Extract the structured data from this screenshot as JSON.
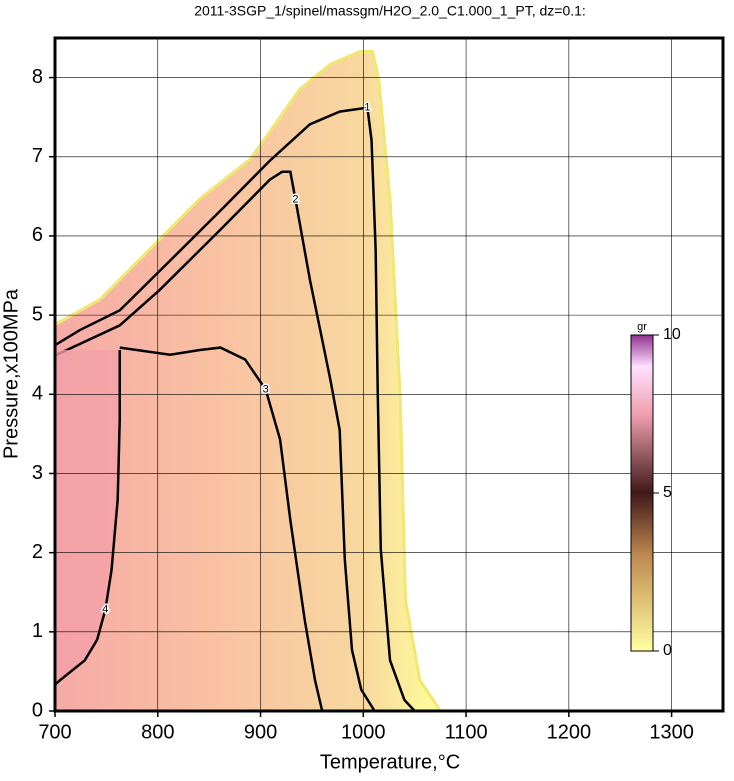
{
  "chart_data": {
    "type": "contour",
    "title": "2011-3SGP_1/spinel/massgm/H2O_2.0_C1.000_1_PT, dz=0.1:",
    "xlabel": "Temperature,°C",
    "ylabel": "Pressure,x100MPa",
    "xlim": [
      700,
      1350
    ],
    "ylim": [
      0,
      8.5
    ],
    "xticks": [
      700,
      800,
      900,
      1000,
      1100,
      1200,
      1300
    ],
    "yticks": [
      0,
      1,
      2,
      3,
      4,
      5,
      6,
      7,
      8
    ],
    "grid": true,
    "region": {
      "x": [
        700,
        744,
        763,
        802,
        841,
        890,
        938,
        968,
        997,
        1009,
        1015,
        1026,
        1036,
        1041,
        1055,
        1075,
        700
      ],
      "y": [
        4.88,
        5.2,
        5.45,
        5.96,
        6.47,
        6.97,
        7.85,
        8.17,
        8.33,
        8.33,
        7.98,
        6.46,
        3.93,
        1.4,
        0.39,
        0,
        0
      ]
    },
    "contours": [
      {
        "level": 1,
        "x": [
          700,
          724,
          763,
          802,
          861,
          909,
          948,
          977,
          1004,
          1008,
          1012,
          1014,
          1017,
          1026,
          1040,
          1050
        ],
        "y": [
          4.62,
          4.81,
          5.06,
          5.56,
          6.32,
          6.95,
          7.41,
          7.57,
          7.62,
          7.21,
          5.83,
          4.05,
          2.04,
          0.64,
          0.14,
          0
        ]
      },
      {
        "level": 2,
        "x": [
          700,
          763,
          802,
          861,
          909,
          921,
          929,
          934,
          948,
          968,
          977,
          982,
          989,
          998,
          1011
        ],
        "y": [
          4.49,
          4.87,
          5.32,
          6.08,
          6.71,
          6.81,
          6.81,
          6.46,
          5.45,
          4.18,
          3.55,
          1.91,
          0.77,
          0.27,
          0
        ]
      },
      {
        "level": 3,
        "x": [
          763,
          812,
          841,
          861,
          885,
          905,
          919,
          929,
          943,
          953,
          960
        ],
        "y": [
          4.59,
          4.5,
          4.56,
          4.59,
          4.44,
          4.06,
          3.43,
          2.41,
          1.15,
          0.39,
          0
        ]
      },
      {
        "level": 4,
        "x": [
          763,
          763,
          761,
          755,
          749,
          741,
          729,
          705,
          700
        ],
        "y": [
          4.56,
          3.68,
          2.67,
          1.78,
          1.28,
          0.9,
          0.64,
          0.39,
          0.33
        ]
      }
    ],
    "colorbar": {
      "label": "gr",
      "clim": [
        0,
        10
      ],
      "ticks": [
        0,
        5,
        10
      ]
    }
  }
}
